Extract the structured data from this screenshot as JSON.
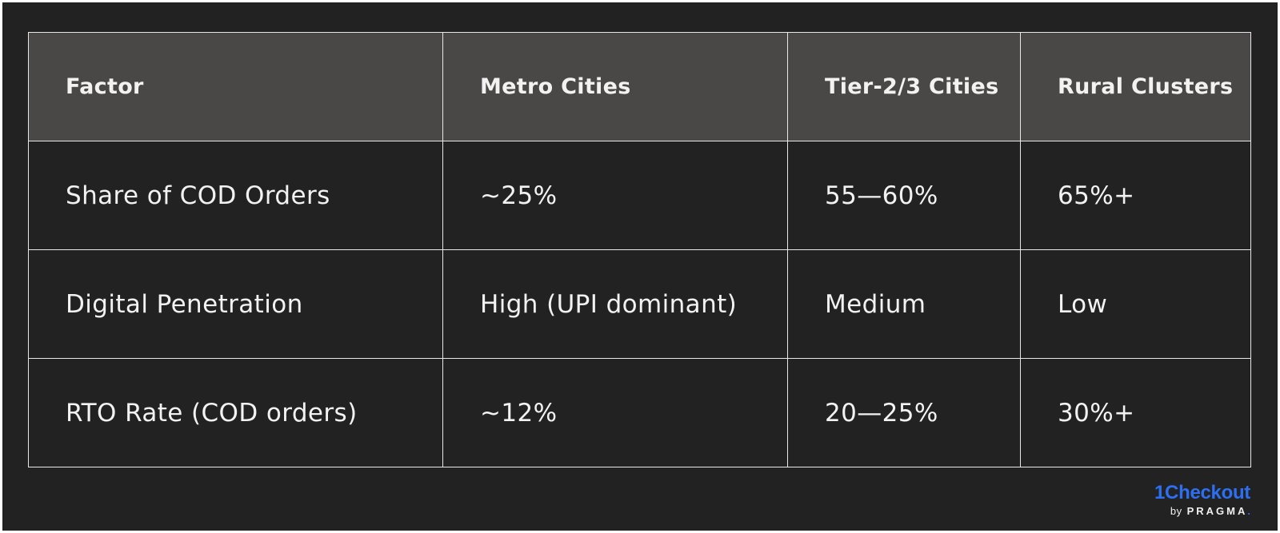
{
  "table": {
    "headers": [
      "Factor",
      "Metro Cities",
      "Tier-2/3 Cities",
      "Rural Clusters"
    ],
    "rows": [
      [
        "Share of COD Orders",
        "~25%",
        "55—60%",
        "65%+"
      ],
      [
        "Digital Penetration",
        "High (UPI dominant)",
        "Medium",
        "Low"
      ],
      [
        "RTO Rate (COD orders)",
        "~12%",
        "20—25%",
        "30%+"
      ]
    ]
  },
  "brand": {
    "name": "1Checkout",
    "by": "by",
    "company": "PRAGMA",
    "dot": "."
  },
  "colors": {
    "background": "#222222",
    "header_background": "#4a4846",
    "grid_line": "#e8e8e8",
    "text": "#f2f2f2",
    "brand_accent": "#2d6ff2"
  }
}
